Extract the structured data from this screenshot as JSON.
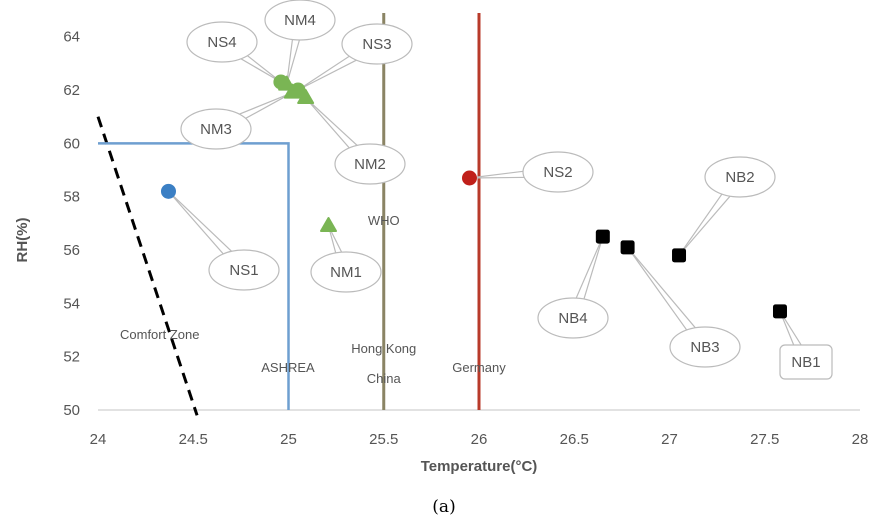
{
  "chart_data": {
    "type": "scatter",
    "xlabel": "Temperature(°C)",
    "ylabel": "RH(%)",
    "xlim": [
      24,
      28
    ],
    "ylim": [
      50,
      65
    ],
    "x_ticks": [
      24,
      24.5,
      25,
      25.5,
      26,
      26.5,
      27,
      27.5,
      28
    ],
    "x_tick_labels": [
      "24",
      "24.5",
      "25",
      "25.5",
      "26",
      "26.5",
      "27",
      "27.5",
      "28"
    ],
    "y_ticks": [
      50,
      52,
      54,
      56,
      58,
      60,
      62,
      64
    ],
    "y_tick_labels": [
      "50",
      "52",
      "54",
      "56",
      "58",
      "60",
      "62",
      "64"
    ],
    "grid": false,
    "caption": "(a)",
    "points": [
      {
        "label": "NS1",
        "x": 24.37,
        "y": 58.2,
        "color": "#3b7fc4",
        "marker": "circle"
      },
      {
        "label": "NS2",
        "x": 25.95,
        "y": 58.7,
        "color": "#c0201a",
        "marker": "circle"
      },
      {
        "label": "NS3",
        "x": 25.05,
        "y": 62.0,
        "color": "#7ab554",
        "marker": "circle"
      },
      {
        "label": "NS4",
        "x": 24.96,
        "y": 62.3,
        "color": "#7ab554",
        "marker": "circle"
      },
      {
        "label": "NM1",
        "x": 25.21,
        "y": 56.9,
        "color": "#7ab554",
        "marker": "triangle"
      },
      {
        "label": "NM2",
        "x": 25.09,
        "y": 61.7,
        "color": "#7ab554",
        "marker": "triangle"
      },
      {
        "label": "NM3",
        "x": 25.02,
        "y": 61.9,
        "color": "#7ab554",
        "marker": "triangle"
      },
      {
        "label": "NM4",
        "x": 24.99,
        "y": 62.2,
        "color": "#7ab554",
        "marker": "triangle"
      },
      {
        "label": "NB1",
        "x": 27.58,
        "y": 53.7,
        "color": "#000000",
        "marker": "square"
      },
      {
        "label": "NB2",
        "x": 27.05,
        "y": 55.8,
        "color": "#000000",
        "marker": "square"
      },
      {
        "label": "NB3",
        "x": 26.78,
        "y": 56.1,
        "color": "#000000",
        "marker": "square"
      },
      {
        "label": "NB4",
        "x": 26.65,
        "y": 56.5,
        "color": "#000000",
        "marker": "square"
      }
    ],
    "reference_lines": [
      {
        "label": "Comfort Zone",
        "x1": 24.0,
        "y1": 61.0,
        "x2": 24.52,
        "y2": 49.8,
        "color": "#000000",
        "style": "dashed"
      },
      {
        "label": "ASHREA",
        "x": 25.0,
        "y_top": 60.0,
        "color": "#6e9fd0",
        "style": "solid"
      },
      {
        "label_lines": [
          "WHO",
          "Hong Kong",
          "China"
        ],
        "x": 25.5,
        "color": "#8a8464",
        "style": "solid"
      },
      {
        "label": "Germany",
        "x": 26.0,
        "color": "#b83a2a",
        "style": "solid"
      }
    ]
  }
}
